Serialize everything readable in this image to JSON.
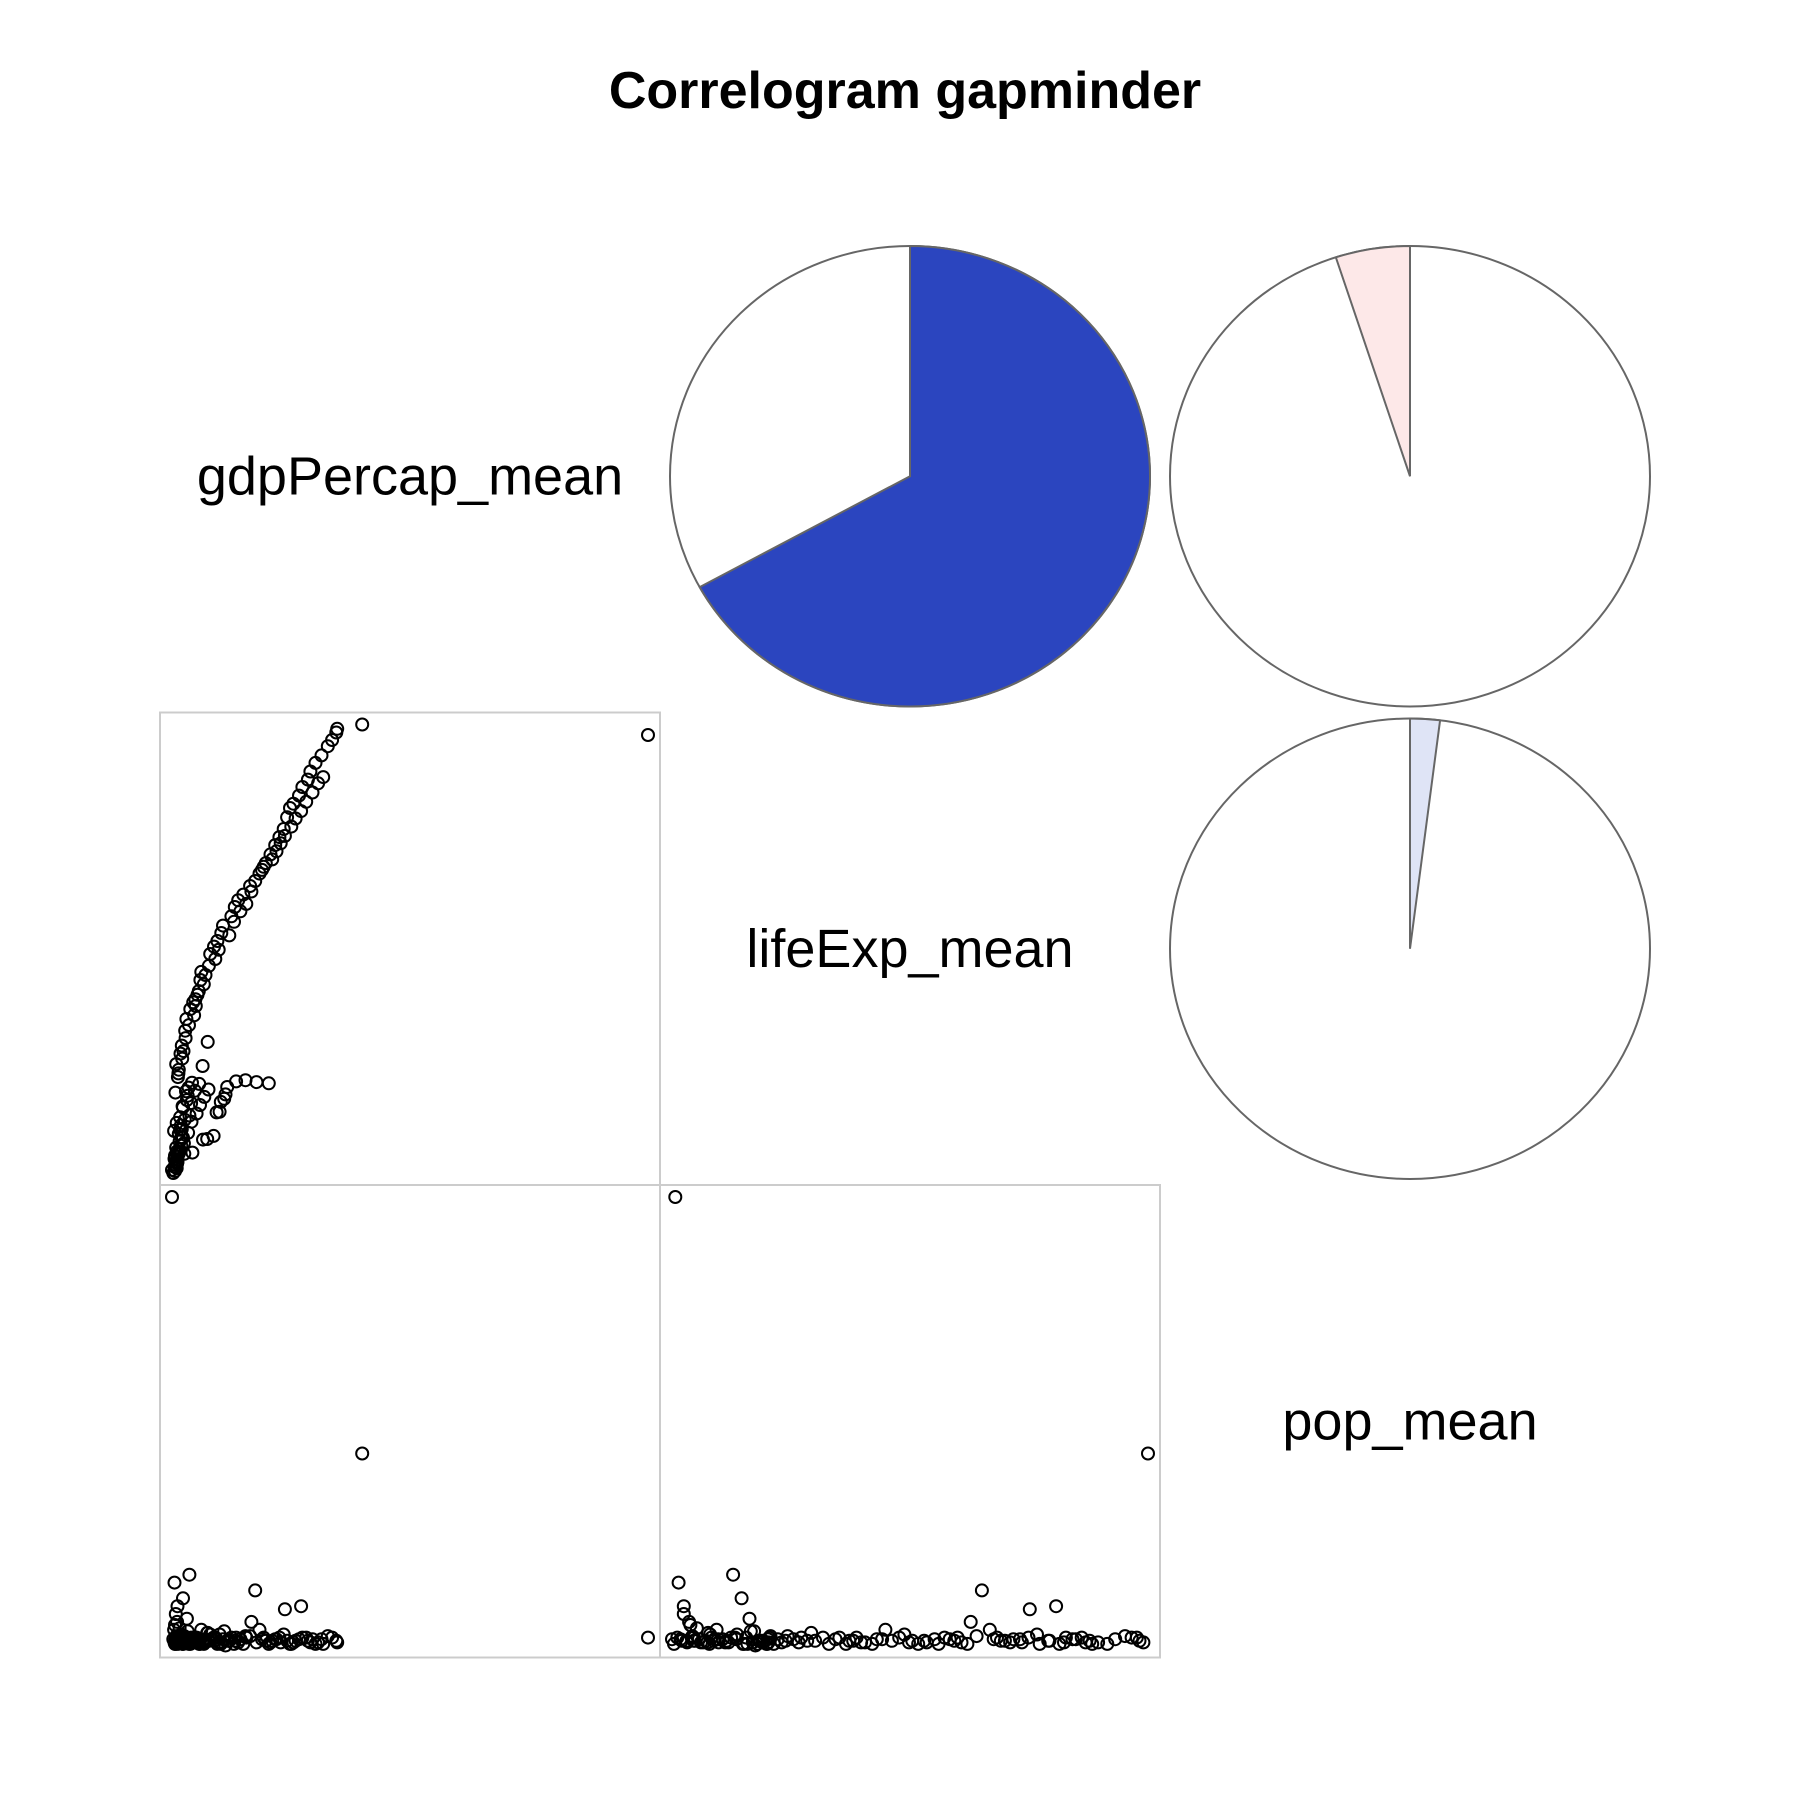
{
  "chart_data": {
    "type": "correlogram",
    "title": "Correlogram gapminder",
    "variables": [
      "gdpPercap_mean",
      "lifeExp_mean",
      "pop_mean"
    ],
    "upper_panel": "pie",
    "lower_panel": "scatter",
    "correlations": [
      {
        "row": "gdpPercap_mean",
        "col": "lifeExp_mean",
        "r": 0.67,
        "color": "#2b45bf"
      },
      {
        "row": "gdpPercap_mean",
        "col": "pop_mean",
        "r": -0.05,
        "color": "#fde8e8"
      },
      {
        "row": "lifeExp_mean",
        "col": "pop_mean",
        "r": 0.02,
        "color": "#dfe4f6"
      }
    ],
    "scatter_points": {
      "gdpPercap_mean": [
        4.3,
        6.2,
        8.7,
        9.7,
        11.2,
        11.9,
        12.6,
        12.9,
        13.7,
        14.0,
        14.4,
        16.5,
        18.7,
        21.3,
        24.2,
        1.9,
        1.4,
        2.0,
        2.7,
        2.3,
        2.6,
        2.1,
        3.2,
        3.6,
        3.3,
        2.5,
        5.5,
        4.0,
        4.9,
        5.1,
        8.6,
        9.8,
        2.2,
        2.9,
        2.4,
        3.4,
        3.7,
        4.5,
        4.8,
        5.7,
        6.4,
        6.9,
        7.4,
        8.1,
        8.3,
        10.4,
        11.3,
        12.1,
        13.0,
        13.4,
        15.4,
        16.2,
        17.0,
        18.2,
        19.8,
        22.6,
        23.5,
        24.6,
        25.7,
        26.7,
        27.7,
        28.5,
        29.2,
        30.0,
        31.3,
        32.1,
        33.4,
        34.0,
        35.2,
        36.6,
        38.1,
        39.1,
        40.1,
        40.3,
        46.2,
        113.5,
        2.8,
        3.0,
        3.8,
        4.1,
        4.6,
        5.4,
        6.6,
        7.0,
        7.7,
        8.9,
        9.3,
        10.1,
        11.6,
        12.4,
        14.9,
        16.0,
        17.5,
        18.9,
        20.1,
        21.0,
        22.0,
        23.0,
        25.0,
        26.0,
        27.0,
        28.0,
        29.5,
        30.5,
        31.8,
        33.0,
        34.5,
        35.8,
        37.0,
        1.7,
        2.6,
        3.1,
        4.2,
        5.2,
        6.0,
        7.2,
        8.0,
        9.0,
        10.0,
        3.5,
        4.4,
        5.9,
        6.8,
        7.8,
        2.0,
        2.4,
        3.0,
        3.3,
        3.9,
        4.7,
        5.3,
        6.1,
        2.5,
        2.7,
        3.6,
        4.0,
        2.2,
        2.9,
        3.2,
        3.7,
        2.1,
        2.6
      ],
      "lifeExp_mean": [
        3.6,
        3.8,
        5.9,
        6.0,
        6.5,
        10.3,
        10.4,
        12.0,
        12.5,
        13.2,
        14.4,
        15.3,
        15.5,
        15.2,
        15.0,
        7.3,
        1.0,
        1.5,
        2.3,
        2.3,
        3.1,
        3.3,
        4.3,
        6.3,
        7.5,
        8.6,
        9.8,
        11.1,
        12.3,
        13.0,
        17.8,
        21.7,
        13.5,
        16.6,
        18.1,
        19.8,
        21.1,
        23.5,
        25.4,
        27.0,
        28.1,
        28.6,
        29.3,
        31.7,
        33.0,
        35.9,
        37.1,
        38.0,
        39.3,
        40.5,
        42.0,
        43.5,
        44.6,
        45.5,
        46.9,
        49.5,
        50.6,
        52.0,
        53.5,
        54.8,
        56.1,
        58.0,
        59.5,
        60.2,
        61.5,
        62.9,
        64.1,
        65.4,
        66.8,
        68.0,
        69.5,
        70.5,
        71.7,
        72.3,
        73.0,
        71.3,
        16.0,
        17.2,
        19.0,
        20.2,
        22.3,
        24.4,
        26.0,
        27.5,
        29.9,
        31.0,
        32.5,
        34.0,
        35.1,
        36.6,
        38.9,
        41.1,
        42.8,
        44.0,
        46.0,
        47.7,
        48.9,
        50.0,
        51.2,
        52.5,
        53.8,
        55.0,
        56.5,
        57.8,
        59.0,
        60.5,
        62.0,
        63.5,
        64.5,
        0.5,
        2.0,
        3.8,
        5.3,
        7.0,
        8.8,
        10.1,
        11.5,
        12.8,
        14.0,
        8.2,
        9.1,
        11.8,
        13.8,
        14.9,
        2.8,
        4.6,
        6.8,
        9.5,
        11.3,
        13.7,
        14.3,
        15.1,
        1.3,
        2.7,
        4.9,
        6.2,
        1.8,
        3.5,
        5.6,
        7.6,
        0.8,
        4.0
      ],
      "pop_mean": [
        1.1,
        0.8,
        0.7,
        1.3,
        1.0,
        0.9,
        1.2,
        0.6,
        1.4,
        0.5,
        0.8,
        1.0,
        1.1,
        0.7,
        0.6,
        1.5,
        29.0,
        4.5,
        3.0,
        2.5,
        2.0,
        1.8,
        1.6,
        1.2,
        0.9,
        0.7,
        5.0,
        3.5,
        2.2,
        1.4,
        0.8,
        1.3,
        0.6,
        0.9,
        1.1,
        0.7,
        0.8,
        1.0,
        0.9,
        0.6,
        0.8,
        1.0,
        0.7,
        0.9,
        1.5,
        1.2,
        0.8,
        0.6,
        0.7,
        0.9,
        1.0,
        0.8,
        0.7,
        0.6,
        1.1,
        0.9,
        0.8,
        0.7,
        0.9,
        1.0,
        1.2,
        0.8,
        0.6,
        0.7,
        0.9,
        1.0,
        0.8,
        0.7,
        0.6,
        0.9,
        1.1,
        1.0,
        0.8,
        0.7,
        12.7,
        1.0,
        0.6,
        0.7,
        0.9,
        1.0,
        0.8,
        0.6,
        1.0,
        0.8,
        0.7,
        0.6,
        0.9,
        0.8,
        1.0,
        0.7,
        0.8,
        0.6,
        0.9,
        1.0,
        2.0,
        4.0,
        1.5,
        1.0,
        0.8,
        0.9,
        0.7,
        2.8,
        0.6,
        0.8,
        3.0,
        1.0,
        0.9,
        0.7,
        0.6,
        0.9,
        0.8,
        1.0,
        0.7,
        0.9,
        0.8,
        1.0,
        0.6,
        0.7,
        0.8,
        0.9,
        0.7,
        1.0,
        0.8,
        0.6,
        0.7,
        0.9,
        0.8,
        1.0,
        0.6,
        0.8,
        0.7,
        0.9,
        1.0,
        0.8,
        0.7,
        0.6,
        0.9,
        1.0,
        0.8,
        0.7,
        0.6,
        0.8,
        0.9,
        1.1,
        23.0,
        0.7
      ]
    }
  }
}
